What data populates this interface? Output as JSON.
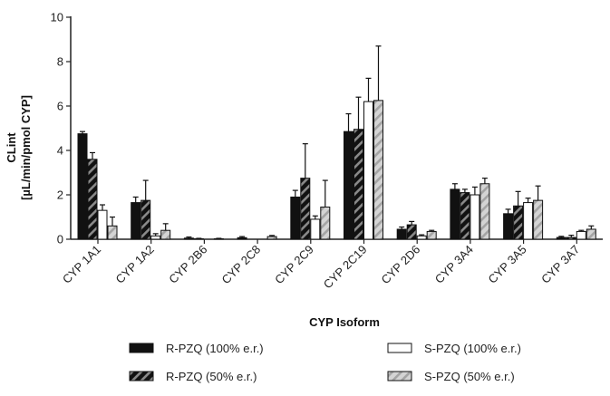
{
  "chart_data": {
    "type": "bar",
    "xlabel": "CYP Isoform",
    "ylabel_line1": "CLint",
    "ylabel_line2": "[µL/min/pmol CYP]",
    "ylim": [
      0,
      10
    ],
    "yticks": [
      0,
      2,
      4,
      6,
      8,
      10
    ],
    "grid": false,
    "legend_position": "bottom",
    "categories": [
      "CYP 1A1",
      "CYP 1A2",
      "CYP 2B6",
      "CYP 2C8",
      "CYP 2C9",
      "CYP 2C19",
      "CYP 2D6",
      "CYP 3A4",
      "CYP 3A5",
      "CYP 3A7"
    ],
    "series": [
      {
        "name": "R-PZQ (100% e.r.)",
        "fill": "solid-black",
        "values": [
          4.75,
          1.65,
          0.05,
          0.07,
          1.9,
          4.85,
          0.45,
          2.25,
          1.15,
          0.08
        ],
        "errors": [
          0.1,
          0.25,
          0.05,
          0.05,
          0.3,
          0.8,
          0.1,
          0.25,
          0.2,
          0.05
        ]
      },
      {
        "name": "R-PZQ (50% e.r.)",
        "fill": "dark-hatched",
        "values": [
          3.6,
          1.75,
          0.02,
          0.0,
          2.75,
          4.95,
          0.65,
          2.1,
          1.5,
          0.08
        ],
        "errors": [
          0.3,
          0.9,
          0.02,
          0.0,
          1.55,
          1.45,
          0.15,
          0.15,
          0.65,
          0.1
        ]
      },
      {
        "name": "S-PZQ (100% e.r.)",
        "fill": "white",
        "values": [
          1.3,
          0.15,
          0.0,
          0.0,
          0.9,
          6.2,
          0.15,
          2.0,
          1.65,
          0.35
        ],
        "errors": [
          0.25,
          0.1,
          0.0,
          0.0,
          0.15,
          1.05,
          0.05,
          0.35,
          0.2,
          0.05
        ]
      },
      {
        "name": "S-PZQ (50% e.r.)",
        "fill": "light-hatched",
        "values": [
          0.6,
          0.4,
          0.02,
          0.12,
          1.45,
          6.25,
          0.35,
          2.5,
          1.75,
          0.45
        ],
        "errors": [
          0.4,
          0.3,
          0.02,
          0.05,
          1.2,
          2.45,
          0.05,
          0.25,
          0.65,
          0.15
        ]
      }
    ]
  },
  "colors": {
    "bar_dark": "#111111",
    "hatch_dark": "#888888",
    "hatch_light_bg": "#d0d0d0",
    "hatch_light_stripe": "#a8a8a8",
    "axis": "#222222"
  }
}
